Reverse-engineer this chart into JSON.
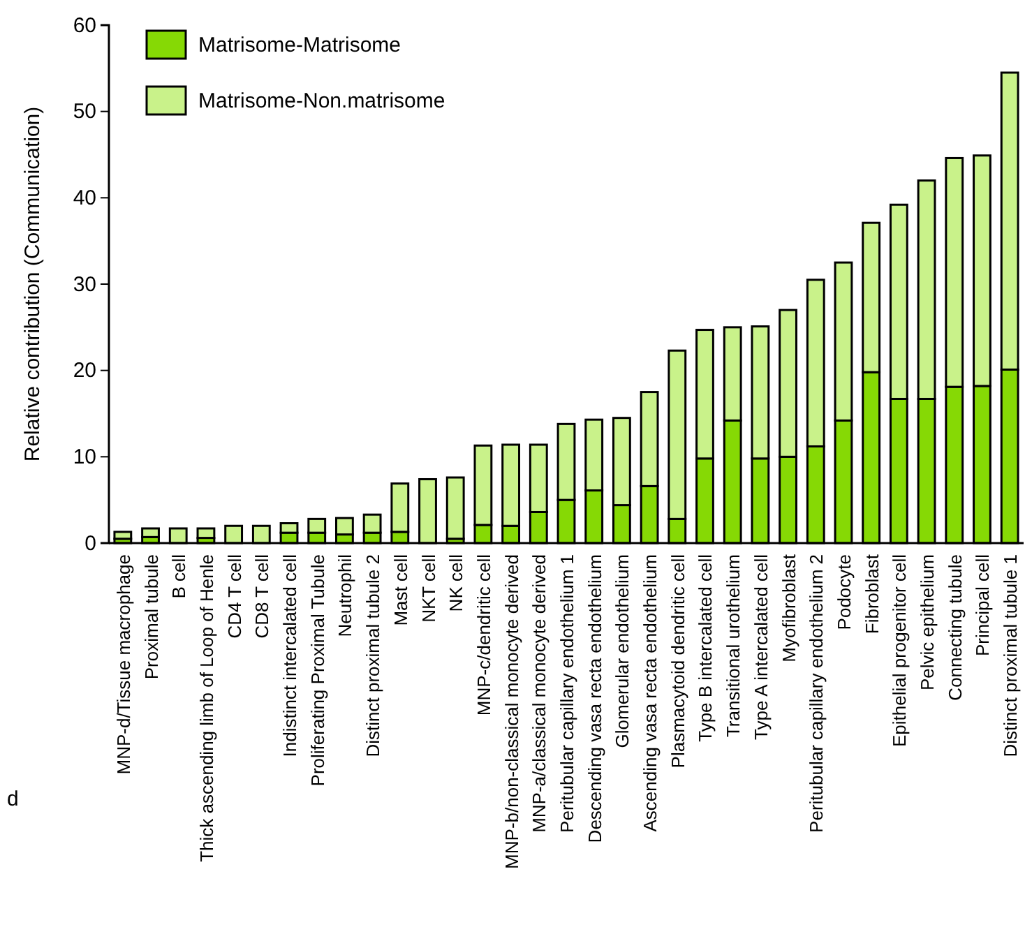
{
  "chart_data": {
    "type": "bar",
    "stacked": true,
    "ylabel": "Relative contribution (Communication)",
    "annotations": [
      "d"
    ],
    "categories": [
      "MNP-d/Tissue macrophage",
      "Proximal tubule",
      "B cell",
      "Thick ascending limb of Loop of Henle",
      "CD4 T cell",
      "CD8 T cell",
      "Indistinct intercalated cell",
      "Proliferating Proximal Tubule",
      "Neutrophil",
      "Distinct proximal tubule 2",
      "Mast cell",
      "NKT cell",
      "NK cell",
      "MNP-c/dendritic cell",
      "MNP-b/non-classical monocyte derived",
      "MNP-a/classical monocyte derived",
      "Peritubular capillary endothelium 1",
      "Descending vasa recta endothelium",
      "Glomerular endothelium",
      "Ascending vasa recta endothelium",
      "Plasmacytoid dendritic cell",
      "Type B intercalated cell",
      "Transitional urothelium",
      "Type A intercalated cell",
      "Myofibroblast",
      "Peritubular capillary endothelium 2",
      "Podocyte",
      "Fibroblast",
      "Epithelial progenitor cell",
      "Pelvic epithelium",
      "Connecting tubule",
      "Principal cell",
      "Distinct proximal tubule 1"
    ],
    "series": [
      {
        "name": "Matrisome-Matrisome",
        "color": "#86d905",
        "values": [
          0.5,
          0.7,
          0,
          0.6,
          0,
          0,
          1.2,
          1.2,
          1.0,
          1.2,
          1.3,
          0,
          0.5,
          2.1,
          2.0,
          3.6,
          5.0,
          6.1,
          4.4,
          6.6,
          2.8,
          9.8,
          14.2,
          9.8,
          10.0,
          11.2,
          14.2,
          19.8,
          16.7,
          16.7,
          18.1,
          18.2,
          20.1
        ]
      },
      {
        "name": "Matrisome-Non.matrisome",
        "color": "#c9f28a",
        "values": [
          0.8,
          1.0,
          1.7,
          1.1,
          2.0,
          2.0,
          1.1,
          1.6,
          1.9,
          2.1,
          5.6,
          7.4,
          7.1,
          9.2,
          9.4,
          7.8,
          8.8,
          8.2,
          10.1,
          10.9,
          19.5,
          14.9,
          10.8,
          15.3,
          17.0,
          19.3,
          18.3,
          17.3,
          22.5,
          25.3,
          26.5,
          26.7,
          34.4
        ]
      }
    ],
    "ylim": [
      0,
      60
    ],
    "yticks": [
      0,
      10,
      20,
      30,
      40,
      50,
      60
    ],
    "grid": false,
    "legend": "top left"
  }
}
